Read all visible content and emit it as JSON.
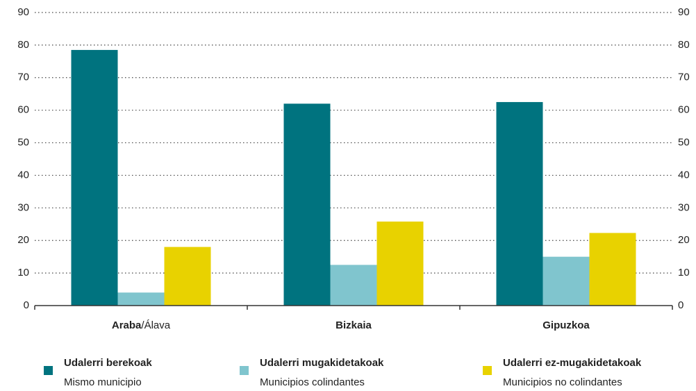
{
  "chart_data": {
    "type": "bar",
    "categories": [
      "Araba/Álava",
      "Bizkaia",
      "Gipuzkoa"
    ],
    "series": [
      {
        "name": "Udalerri berekoak",
        "subname": "Mismo municipio",
        "color": "#00737f",
        "values": [
          78.5,
          62,
          62.5
        ]
      },
      {
        "name": "Udalerri mugakidetakoak",
        "subname": "Municipios  colindantes",
        "color": "#80c5ce",
        "values": [
          4,
          12.5,
          15
        ]
      },
      {
        "name": "Udalerri ez-mugakidetakoak",
        "subname": "Municipios no colindantes",
        "color": "#e8d200",
        "values": [
          18,
          25.8,
          22.3
        ]
      }
    ],
    "ylim": [
      0,
      90
    ],
    "yticks": [
      0,
      10,
      20,
      30,
      40,
      50,
      60,
      70,
      80,
      90
    ],
    "y2lim": [
      0,
      90
    ],
    "y2ticks": [
      0,
      10,
      20,
      30,
      40,
      50,
      60,
      70,
      80,
      90
    ],
    "grid": true,
    "legend": "bottom"
  }
}
